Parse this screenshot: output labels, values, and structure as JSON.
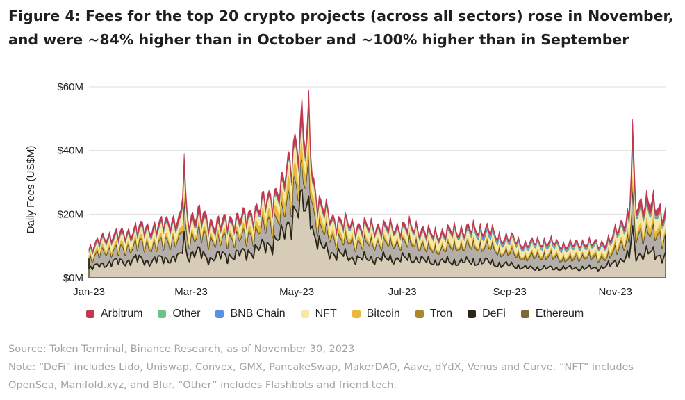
{
  "title": "Figure 4: Fees for the top 20 crypto projects (across all sectors) rose in November, and were ~84% higher than in October and ~100% higher than in September",
  "source": "Source: Token Terminal, Binance Research, as of November 30, 2023",
  "note": "Note: “DeFi” includes Lido, Uniswap, Convex, GMX, PancakeSwap, MakerDAO, Aave, dYdX, Venus and Curve. “NFT” includes OpenSea, Manifold.xyz, and Blur. “Other” includes Flashbots and friend.tech.",
  "chart_data": {
    "type": "area",
    "stacked": true,
    "ylabel": "Daily Fees (US$M)",
    "xlabel": "",
    "ylim": [
      0,
      60
    ],
    "yticks": [
      0,
      20,
      40,
      60
    ],
    "ytick_labels": [
      "$0M",
      "$20M",
      "$40M",
      "$60M"
    ],
    "xlim": [
      "2023-01-01",
      "2023-11-30"
    ],
    "x_ticks": [
      {
        "date": "2023-01-01",
        "label": "Jan-23"
      },
      {
        "date": "2023-03-01",
        "label": "Mar-23"
      },
      {
        "date": "2023-05-01",
        "label": "May-23"
      },
      {
        "date": "2023-07-01",
        "label": "Jul-23"
      },
      {
        "date": "2023-09-01",
        "label": "Sep-23"
      },
      {
        "date": "2023-11-01",
        "label": "Nov-23"
      }
    ],
    "grid": "horizontal",
    "legend_position": "bottom",
    "stack_order_bottom_to_top": [
      "Ethereum",
      "DeFi",
      "Tron",
      "Bitcoin",
      "NFT",
      "BNB Chain",
      "Other",
      "Arbitrum"
    ],
    "legend": [
      "Arbitrum",
      "Other",
      "BNB Chain",
      "NFT",
      "Bitcoin",
      "Tron",
      "DeFi",
      "Ethereum"
    ],
    "x": [
      "2023-01-01",
      "2023-01-08",
      "2023-01-15",
      "2023-01-22",
      "2023-01-29",
      "2023-02-05",
      "2023-02-12",
      "2023-02-19",
      "2023-02-26",
      "2023-03-05",
      "2023-03-12",
      "2023-03-19",
      "2023-03-26",
      "2023-04-02",
      "2023-04-09",
      "2023-04-16",
      "2023-04-23",
      "2023-04-30",
      "2023-05-07",
      "2023-05-14",
      "2023-05-21",
      "2023-05-28",
      "2023-06-04",
      "2023-06-11",
      "2023-06-18",
      "2023-06-25",
      "2023-07-02",
      "2023-07-09",
      "2023-07-16",
      "2023-07-23",
      "2023-07-30",
      "2023-08-06",
      "2023-08-13",
      "2023-08-20",
      "2023-08-27",
      "2023-09-03",
      "2023-09-10",
      "2023-09-17",
      "2023-09-24",
      "2023-10-01",
      "2023-10-08",
      "2023-10-15",
      "2023-10-22",
      "2023-10-29",
      "2023-11-05",
      "2023-11-12",
      "2023-11-19",
      "2023-11-26",
      "2023-11-30"
    ],
    "series": [
      {
        "name": "Ethereum",
        "color": "#7a6a3a",
        "values": [
          3,
          4,
          5,
          5,
          6,
          5,
          6,
          6,
          7,
          8,
          6,
          7,
          7,
          8,
          9,
          11,
          13,
          22,
          20,
          10,
          8,
          7,
          6,
          6,
          6,
          6,
          6,
          6,
          5,
          5,
          5,
          5,
          5,
          5,
          4,
          4,
          3,
          3,
          3,
          3,
          3,
          3,
          3,
          4,
          6,
          7,
          8,
          7,
          7
        ]
      },
      {
        "name": "DeFi",
        "color": "#2b2517",
        "values": [
          3,
          4,
          4,
          4,
          5,
          5,
          5,
          6,
          5,
          6,
          6,
          5,
          6,
          5,
          6,
          7,
          7,
          9,
          8,
          6,
          5,
          5,
          5,
          5,
          5,
          5,
          5,
          5,
          4,
          4,
          5,
          5,
          5,
          5,
          4,
          4,
          3,
          4,
          4,
          3,
          3,
          4,
          3,
          3,
          5,
          6,
          7,
          6,
          6
        ]
      },
      {
        "name": "Tron",
        "color": "#a9892c",
        "values": [
          0.4,
          0.4,
          0.4,
          0.4,
          0.4,
          0.4,
          0.4,
          0.5,
          0.5,
          0.5,
          0.5,
          0.5,
          0.5,
          0.5,
          0.5,
          0.5,
          0.6,
          0.6,
          0.6,
          0.5,
          0.5,
          0.5,
          0.5,
          0.5,
          0.5,
          0.5,
          0.6,
          0.6,
          0.6,
          0.6,
          0.6,
          0.6,
          0.6,
          0.6,
          0.6,
          0.6,
          0.6,
          0.6,
          0.6,
          0.6,
          0.6,
          0.6,
          0.6,
          0.7,
          0.7,
          0.7,
          0.7,
          0.7,
          0.7
        ]
      },
      {
        "name": "Bitcoin",
        "color": "#e8b93a",
        "values": [
          0.8,
          0.9,
          1,
          1,
          1,
          1,
          1,
          1,
          1,
          1,
          1,
          1,
          1,
          1.5,
          2,
          2.5,
          3,
          5,
          4,
          2,
          1.5,
          1.2,
          1,
          0.8,
          0.7,
          0.6,
          0.6,
          0.6,
          0.5,
          0.5,
          0.5,
          0.5,
          0.5,
          0.5,
          0.5,
          0.5,
          0.5,
          0.5,
          0.5,
          0.5,
          0.5,
          0.5,
          0.6,
          0.8,
          1,
          1.5,
          2,
          1.5,
          1.5
        ]
      },
      {
        "name": "NFT",
        "color": "#f6e8a6",
        "values": [
          1,
          1.5,
          2,
          2,
          2,
          2.5,
          3,
          3,
          3,
          2.5,
          2,
          2,
          2.5,
          2.5,
          3,
          3,
          3,
          5,
          4,
          3,
          2.5,
          2.5,
          2.5,
          2.5,
          2.5,
          2.5,
          2.5,
          2.5,
          2.5,
          2.5,
          2.5,
          2.5,
          2.5,
          2,
          2,
          2,
          2,
          2,
          2,
          2,
          2,
          2,
          2,
          2,
          3,
          3.5,
          4,
          3,
          3
        ]
      },
      {
        "name": "BNB Chain",
        "color": "#5b8ee6",
        "values": [
          0.3,
          0.3,
          0.3,
          0.3,
          0.3,
          0.3,
          0.3,
          0.3,
          0.3,
          0.3,
          0.3,
          0.3,
          0.3,
          0.3,
          0.3,
          0.3,
          0.3,
          0.4,
          0.4,
          0.3,
          0.3,
          0.3,
          0.3,
          0.3,
          0.3,
          0.3,
          0.3,
          0.3,
          0.3,
          0.3,
          0.3,
          0.3,
          0.6,
          0.8,
          0.6,
          0.5,
          0.5,
          0.5,
          0.5,
          0.5,
          0.5,
          0.4,
          0.4,
          0.4,
          0.5,
          0.5,
          0.5,
          0.5,
          0.5
        ]
      },
      {
        "name": "Other",
        "color": "#6ec287",
        "values": [
          0.2,
          0.2,
          0.2,
          0.2,
          0.2,
          0.2,
          0.2,
          0.2,
          0.2,
          0.2,
          0.2,
          0.2,
          0.2,
          0.2,
          0.2,
          0.2,
          0.3,
          0.3,
          0.3,
          0.2,
          0.2,
          0.2,
          0.2,
          0.2,
          0.2,
          0.2,
          0.2,
          0.2,
          0.2,
          0.2,
          0.2,
          0.3,
          0.4,
          0.4,
          0.3,
          0.3,
          0.3,
          0.3,
          0.3,
          0.3,
          0.3,
          0.3,
          0.3,
          0.3,
          0.4,
          0.5,
          0.5,
          0.5,
          0.4
        ]
      },
      {
        "name": "Arbitrum",
        "color": "#c0394f",
        "values": [
          0.6,
          0.8,
          1,
          1,
          1,
          1.2,
          1.2,
          1.5,
          1.5,
          2,
          1.5,
          1.5,
          1.5,
          1.5,
          1.5,
          1.5,
          2,
          2.5,
          2.5,
          1.5,
          1.2,
          1,
          1,
          1,
          1,
          1,
          1,
          1,
          1,
          1,
          1,
          1,
          1,
          0.8,
          0.7,
          0.6,
          0.6,
          0.6,
          0.6,
          0.6,
          0.6,
          0.6,
          0.6,
          0.8,
          1.2,
          2,
          2.5,
          2,
          2
        ]
      }
    ],
    "spikes": [
      {
        "x": "2023-02-25",
        "total": 37
      },
      {
        "x": "2023-05-08",
        "total": 57
      },
      {
        "x": "2023-05-04",
        "total": 55
      },
      {
        "x": "2023-11-11",
        "total": 47
      }
    ]
  }
}
